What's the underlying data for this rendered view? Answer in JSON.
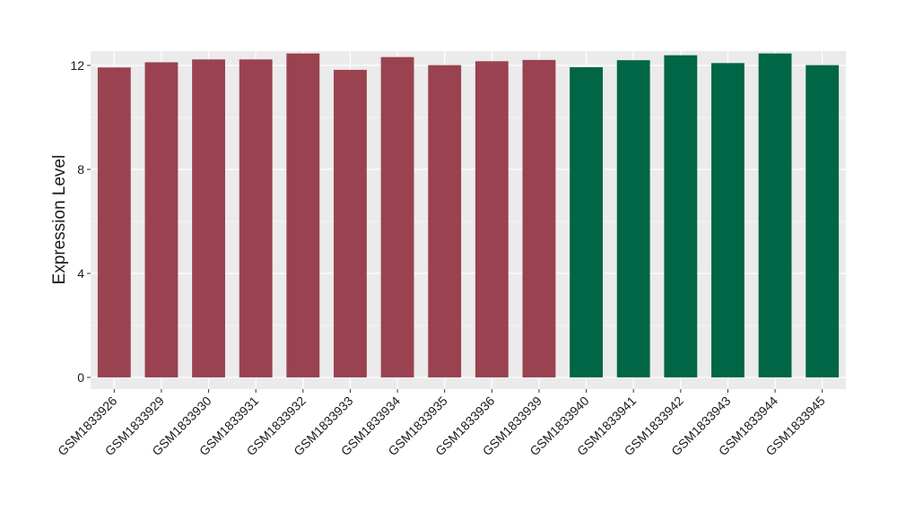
{
  "chart_data": {
    "type": "bar",
    "title": "",
    "xlabel": "",
    "ylabel": "Expression Level",
    "ylim": [
      -0.45,
      12.55
    ],
    "yticks": [
      0,
      4,
      8,
      12
    ],
    "grid": true,
    "legend": "none",
    "categories": [
      "GSM1833926",
      "GSM1833929",
      "GSM1833930",
      "GSM1833931",
      "GSM1833932",
      "GSM1833933",
      "GSM1833934",
      "GSM1833935",
      "GSM1833936",
      "GSM1833939",
      "GSM1833940",
      "GSM1833941",
      "GSM1833942",
      "GSM1833943",
      "GSM1833944",
      "GSM1833945"
    ],
    "values": [
      11.92,
      12.12,
      12.23,
      12.23,
      12.46,
      11.83,
      12.32,
      12.01,
      12.16,
      12.21,
      11.93,
      12.2,
      12.39,
      12.09,
      12.46,
      12.01
    ],
    "bar_colors": [
      "#9a4250",
      "#9a4250",
      "#9a4250",
      "#9a4250",
      "#9a4250",
      "#9a4250",
      "#9a4250",
      "#9a4250",
      "#9a4250",
      "#9a4250",
      "#006645",
      "#006645",
      "#006645",
      "#006645",
      "#006645",
      "#006645"
    ],
    "colors": {
      "panel": "#ebebeb",
      "grid": "#ffffff",
      "group1": "#9a4250",
      "group2": "#006645"
    }
  }
}
